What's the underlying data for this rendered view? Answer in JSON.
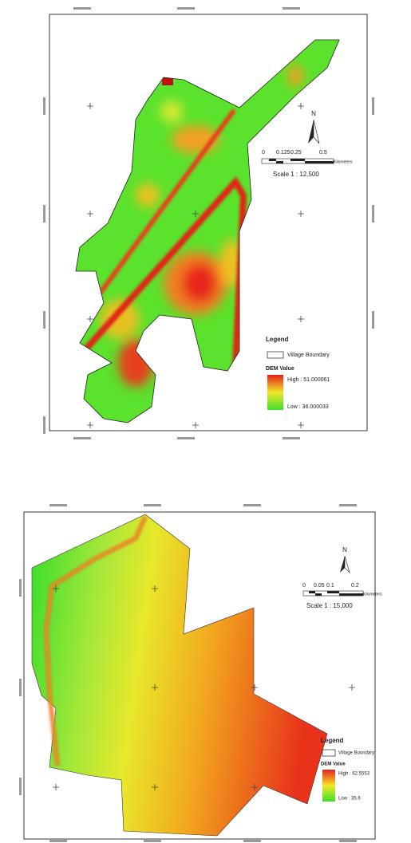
{
  "maps": [
    {
      "north": "N",
      "scale_bar": {
        "labels": [
          "0",
          "0.125",
          "0.25",
          "0.5"
        ],
        "unit": "Kilometers"
      },
      "scale": "Scale   1 : 12,500",
      "legend": {
        "title": "Legend",
        "boundary": "Village Boundary",
        "dem_title": "DEM Value",
        "high": "High : 51.000061",
        "low": "Low : 36.000033"
      }
    },
    {
      "north": "N",
      "scale_bar": {
        "labels": [
          "0",
          "0.05",
          "0.1",
          "0.2"
        ],
        "unit": "Kilometers"
      },
      "scale": "Scale   1 : 15,000",
      "legend": {
        "title": "Legend",
        "boundary": "Village Boundary",
        "dem_title": "DEM Value",
        "high": "High : 62.5553",
        "low": "Low : 35.6"
      }
    }
  ]
}
